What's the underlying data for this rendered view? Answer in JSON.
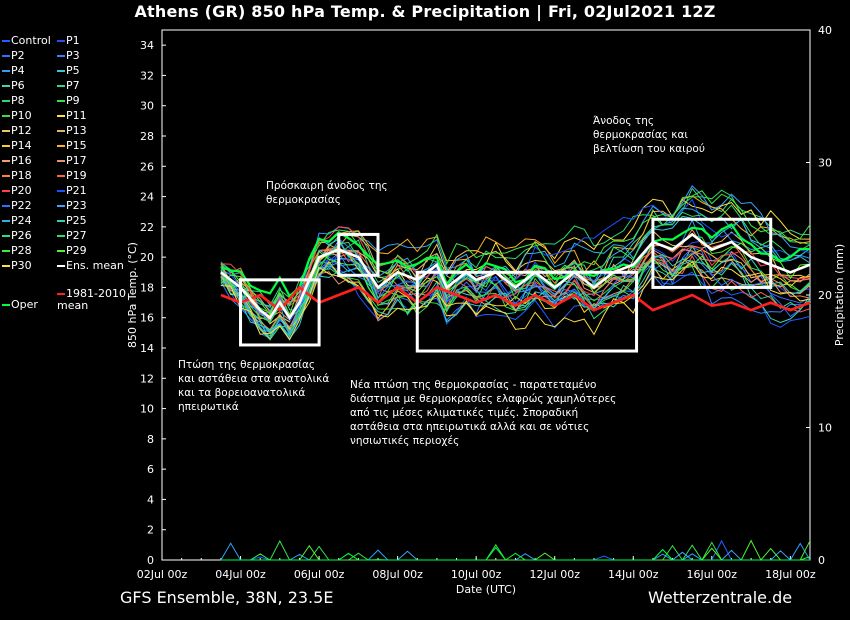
{
  "title": "Athens  (GR)  850 hPa Temp. & Precipitation | Fri, 02Jul2021 12Z",
  "footer": {
    "left": "GFS Ensemble, 38N, 23.5E",
    "right": "Wetterzentrale.de"
  },
  "legend": {
    "items": [
      {
        "label": "Control",
        "color": "#1f5fff"
      },
      {
        "label": "P1",
        "color": "#2a4bff"
      },
      {
        "label": "P2",
        "color": "#2f6fff"
      },
      {
        "label": "P3",
        "color": "#3a7fff"
      },
      {
        "label": "P4",
        "color": "#2aa0ff"
      },
      {
        "label": "P5",
        "color": "#33c8e0"
      },
      {
        "label": "P6",
        "color": "#3ad6b0"
      },
      {
        "label": "P7",
        "color": "#33d68a"
      },
      {
        "label": "P8",
        "color": "#2fd86a"
      },
      {
        "label": "P9",
        "color": "#36e04a"
      },
      {
        "label": "P10",
        "color": "#40e030"
      },
      {
        "label": "P11",
        "color": "#ffe040"
      },
      {
        "label": "P12",
        "color": "#f0c860"
      },
      {
        "label": "P13",
        "color": "#e8b070"
      },
      {
        "label": "P14",
        "color": "#ffd020"
      },
      {
        "label": "P15",
        "color": "#ffb020"
      },
      {
        "label": "P16",
        "color": "#f0a070"
      },
      {
        "label": "P17",
        "color": "#e89070"
      },
      {
        "label": "P18",
        "color": "#ff8040"
      },
      {
        "label": "P19",
        "color": "#ff6050"
      },
      {
        "label": "P20",
        "color": "#ff4050"
      },
      {
        "label": "P21",
        "color": "#2050ff"
      },
      {
        "label": "P22",
        "color": "#3070ff"
      },
      {
        "label": "P23",
        "color": "#40a0ff"
      },
      {
        "label": "P24",
        "color": "#30b0e0"
      },
      {
        "label": "P25",
        "color": "#30d0c0"
      },
      {
        "label": "P26",
        "color": "#30d890"
      },
      {
        "label": "P27",
        "color": "#30e060"
      },
      {
        "label": "P28",
        "color": "#40e840"
      },
      {
        "label": "P29",
        "color": "#50f030"
      },
      {
        "label": "P30",
        "color": "#ffe040"
      },
      {
        "label": "Ens. mean",
        "color": "#ffffff"
      },
      {
        "label": "Oper",
        "color": "#00ff40"
      },
      {
        "label": "1981-2010 mean",
        "color": "#ff2020"
      }
    ]
  },
  "annotations": [
    {
      "lines": [
        "Πτώση της θερμοκρασίας",
        "και αστάθεια στα ανατολικά",
        "και τα βορειοανατολικά",
        "ηπειρωτικά"
      ]
    },
    {
      "lines": [
        "Πρόσκαιρη άνοδος της",
        "θερμοκρασίας"
      ]
    },
    {
      "lines": [
        "Νέα πτώση της θερμοκρασίας - παρατεταμένο",
        "διάστημα με θερμοκρασίες ελαφρώς χαμηλότερες",
        "από τις μέσες κλιματικές τιμές. Σποραδική",
        "αστάθεια στα ηπειρωτικά αλλά και σε νότιες",
        "νησιωτικές περιοχές"
      ]
    },
    {
      "lines": [
        "Άνοδος της",
        "θερμοκρασίας και",
        "βελτίωση του καιρού"
      ]
    }
  ],
  "chart_data": {
    "type": "line",
    "xlabel": "Date (UTC)",
    "ylabel": "850 hPa Temp. (°C)",
    "y2label": "Precipitation (mm)",
    "ylim": [
      0,
      35
    ],
    "y2lim": [
      0,
      40
    ],
    "yticks": [
      "0",
      "2",
      "4",
      "6",
      "8",
      "10",
      "12",
      "14",
      "16",
      "18",
      "20",
      "22",
      "24",
      "26",
      "28",
      "30",
      "32",
      "34"
    ],
    "y2ticks": [
      "0",
      "10",
      "20",
      "30",
      "40"
    ],
    "xticks": [
      "02Jul 00z",
      "04Jul 00z",
      "06Jul 00z",
      "08Jul 00z",
      "10Jul 00z",
      "12Jul 00z",
      "14Jul 00z",
      "16Jul 00z",
      "18Jul 00z"
    ],
    "xlim_hours": [
      0,
      396
    ],
    "grid": false,
    "ens_mean": [
      [
        36,
        19.0
      ],
      [
        48,
        18.0
      ],
      [
        60,
        16.5
      ],
      [
        66,
        16.0
      ],
      [
        72,
        17.0
      ],
      [
        78,
        16.0
      ],
      [
        84,
        17.0
      ],
      [
        96,
        20.0
      ],
      [
        108,
        20.5
      ],
      [
        120,
        20.0
      ],
      [
        132,
        18.0
      ],
      [
        144,
        19.0
      ],
      [
        156,
        18.5
      ],
      [
        168,
        19.5
      ],
      [
        174,
        18.0
      ],
      [
        186,
        19.0
      ],
      [
        192,
        18.5
      ],
      [
        204,
        19.0
      ],
      [
        216,
        18.0
      ],
      [
        228,
        19.0
      ],
      [
        240,
        18.0
      ],
      [
        252,
        19.0
      ],
      [
        264,
        18.0
      ],
      [
        276,
        19.0
      ],
      [
        288,
        19.5
      ],
      [
        300,
        21.0
      ],
      [
        312,
        20.5
      ],
      [
        324,
        21.5
      ],
      [
        336,
        20.5
      ],
      [
        348,
        21.0
      ],
      [
        360,
        20.0
      ],
      [
        372,
        19.5
      ],
      [
        384,
        19.0
      ],
      [
        396,
        19.5
      ]
    ],
    "climatology_mean": [
      [
        36,
        17.5
      ],
      [
        48,
        17.0
      ],
      [
        60,
        17.5
      ],
      [
        72,
        16.5
      ],
      [
        84,
        18.0
      ],
      [
        96,
        17.0
      ],
      [
        108,
        17.5
      ],
      [
        120,
        18.0
      ],
      [
        132,
        17.0
      ],
      [
        144,
        18.0
      ],
      [
        156,
        17.0
      ],
      [
        168,
        18.0
      ],
      [
        180,
        17.5
      ],
      [
        192,
        17.0
      ],
      [
        204,
        17.5
      ],
      [
        216,
        16.8
      ],
      [
        228,
        17.5
      ],
      [
        240,
        16.8
      ],
      [
        252,
        17.5
      ],
      [
        264,
        16.5
      ],
      [
        276,
        17.0
      ],
      [
        288,
        17.5
      ],
      [
        300,
        16.5
      ],
      [
        312,
        17.0
      ],
      [
        324,
        17.5
      ],
      [
        336,
        16.8
      ],
      [
        348,
        17.0
      ],
      [
        360,
        16.5
      ],
      [
        372,
        17.0
      ],
      [
        384,
        16.5
      ],
      [
        396,
        17.0
      ]
    ],
    "boxes_hours_degC": [
      {
        "x0": 48,
        "x1": 96,
        "y0": 14.2,
        "y1": 18.5
      },
      {
        "x0": 108,
        "x1": 132,
        "y0": 18.8,
        "y1": 21.5
      },
      {
        "x0": 156,
        "x1": 290,
        "y0": 13.8,
        "y1": 19.0
      },
      {
        "x0": 300,
        "x1": 372,
        "y0": 18.0,
        "y1": 22.5
      }
    ]
  }
}
